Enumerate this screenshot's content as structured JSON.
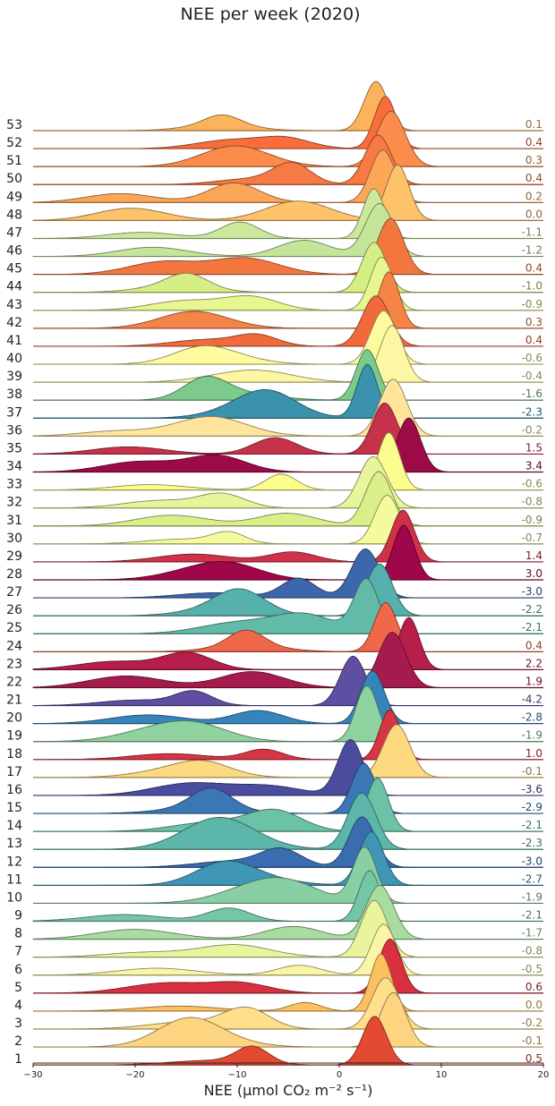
{
  "chart_data": {
    "type": "ridgeline",
    "title": "NEE per week (2020)",
    "xlabel": "NEE (µmol CO₂ m⁻² s⁻¹)",
    "xlim": [
      -30,
      20
    ],
    "xticks": [
      -30,
      -20,
      -10,
      0,
      10,
      20
    ],
    "series": [
      {
        "name": "1",
        "mean": "0.5",
        "color": "#e34a33"
      },
      {
        "name": "2",
        "mean": "-0.1",
        "color": "#fdd480"
      },
      {
        "name": "3",
        "mean": "-0.2",
        "color": "#fee08b"
      },
      {
        "name": "4",
        "mean": "0.0",
        "color": "#fdc060"
      },
      {
        "name": "5",
        "mean": "0.6",
        "color": "#d7303f"
      },
      {
        "name": "6",
        "mean": "-0.5",
        "color": "#fbf5a5"
      },
      {
        "name": "7",
        "mean": "-0.8",
        "color": "#e9f59d"
      },
      {
        "name": "8",
        "mean": "-1.7",
        "color": "#a9dca0"
      },
      {
        "name": "9",
        "mean": "-2.1",
        "color": "#74c6a5"
      },
      {
        "name": "10",
        "mean": "-1.9",
        "color": "#88cfa4"
      },
      {
        "name": "11",
        "mean": "-2.7",
        "color": "#3f96b7"
      },
      {
        "name": "12",
        "mean": "-3.0",
        "color": "#3a6db0"
      },
      {
        "name": "13",
        "mean": "-2.3",
        "color": "#5cb6aa"
      },
      {
        "name": "14",
        "mean": "-2.1",
        "color": "#6cc2a6"
      },
      {
        "name": "15",
        "mean": "-2.9",
        "color": "#3a77b4"
      },
      {
        "name": "16",
        "mean": "-3.6",
        "color": "#4b4c9e"
      },
      {
        "name": "17",
        "mean": "-0.1",
        "color": "#fdd97f"
      },
      {
        "name": "18",
        "mean": "1.0",
        "color": "#d73444"
      },
      {
        "name": "19",
        "mean": "-1.9",
        "color": "#8fd29f"
      },
      {
        "name": "20",
        "mean": "-2.8",
        "color": "#3584ba"
      },
      {
        "name": "21",
        "mean": "-4.2",
        "color": "#5e4fa2"
      },
      {
        "name": "22",
        "mean": "1.9",
        "color": "#a51b4d"
      },
      {
        "name": "23",
        "mean": "2.2",
        "color": "#b51f4a"
      },
      {
        "name": "24",
        "mean": "0.4",
        "color": "#ee6849"
      },
      {
        "name": "25",
        "mean": "-2.1",
        "color": "#62bba8"
      },
      {
        "name": "26",
        "mean": "-2.2",
        "color": "#56b0ac"
      },
      {
        "name": "27",
        "mean": "-3.0",
        "color": "#3c67ad"
      },
      {
        "name": "28",
        "mean": "3.0",
        "color": "#a0064a"
      },
      {
        "name": "29",
        "mean": "1.4",
        "color": "#cf3149"
      },
      {
        "name": "30",
        "mean": "-0.7",
        "color": "#f4fb9c"
      },
      {
        "name": "31",
        "mean": "-0.9",
        "color": "#d8ef8a"
      },
      {
        "name": "32",
        "mean": "-0.8",
        "color": "#e7f69a"
      },
      {
        "name": "33",
        "mean": "-0.6",
        "color": "#fbfd8c"
      },
      {
        "name": "34",
        "mean": "3.4",
        "color": "#9c0a48"
      },
      {
        "name": "35",
        "mean": "1.5",
        "color": "#c6324a"
      },
      {
        "name": "36",
        "mean": "-0.2",
        "color": "#ffe59b"
      },
      {
        "name": "37",
        "mean": "-2.3",
        "color": "#3b92ac"
      },
      {
        "name": "38",
        "mean": "-1.6",
        "color": "#7cca8c"
      },
      {
        "name": "39",
        "mean": "-0.4",
        "color": "#fdf6a2"
      },
      {
        "name": "40",
        "mean": "-0.6",
        "color": "#fdfb9d"
      },
      {
        "name": "41",
        "mean": "0.4",
        "color": "#f06a3c"
      },
      {
        "name": "42",
        "mean": "0.3",
        "color": "#f68447"
      },
      {
        "name": "43",
        "mean": "-0.9",
        "color": "#e6f78f"
      },
      {
        "name": "44",
        "mean": "-1.0",
        "color": "#d6ef85"
      },
      {
        "name": "45",
        "mean": "0.4",
        "color": "#f4763f"
      },
      {
        "name": "46",
        "mean": "-1.2",
        "color": "#c4e59a"
      },
      {
        "name": "47",
        "mean": "-1.1",
        "color": "#cbe99c"
      },
      {
        "name": "48",
        "mean": "0.0",
        "color": "#fec26a"
      },
      {
        "name": "49",
        "mean": "0.2",
        "color": "#fca658"
      },
      {
        "name": "50",
        "mean": "0.4",
        "color": "#f77a44"
      },
      {
        "name": "51",
        "mean": "0.3",
        "color": "#fb8c4b"
      },
      {
        "name": "52",
        "mean": "0.4",
        "color": "#f86d3c"
      },
      {
        "name": "53",
        "mean": "0.1",
        "color": "#fdb35b"
      }
    ],
    "grid": false,
    "legend": "none"
  }
}
